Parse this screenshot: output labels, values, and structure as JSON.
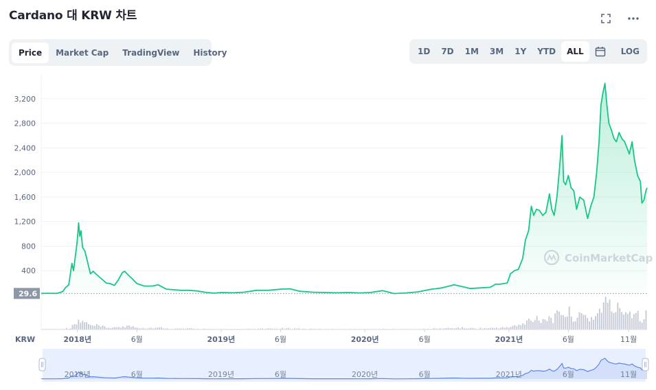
{
  "header": {
    "title": "Cardano 대 KRW 차트"
  },
  "tabs": [
    {
      "label": "Price",
      "active": true
    },
    {
      "label": "Market Cap",
      "active": false
    },
    {
      "label": "TradingView",
      "active": false
    },
    {
      "label": "History",
      "active": false
    }
  ],
  "ranges": [
    {
      "label": "1D",
      "active": false
    },
    {
      "label": "7D",
      "active": false
    },
    {
      "label": "1M",
      "active": false
    },
    {
      "label": "3M",
      "active": false
    },
    {
      "label": "1Y",
      "active": false
    },
    {
      "label": "YTD",
      "active": false
    },
    {
      "label": "ALL",
      "active": true
    }
  ],
  "log_label": "LOG",
  "watermark": "CoinMarketCap",
  "colors": {
    "line": "#16c784",
    "volume": "#c5cad6",
    "navigator": "#5b86e5",
    "navigator_fill": "#e8efff",
    "baseline_label_bg": "#8d97a8"
  },
  "chart_data": {
    "type": "area",
    "currency": "KRW",
    "ylim": [
      0,
      3600
    ],
    "yticks": [
      400,
      800,
      1200,
      1600,
      2000,
      2400,
      2800,
      3200
    ],
    "ytick_labels": [
      "400",
      "800",
      "1,200",
      "1,600",
      "2,000",
      "2,400",
      "2,800",
      "3,200"
    ],
    "baseline_value": 29.6,
    "baseline_label": "29.6",
    "xticks": [
      {
        "date": "2018-01-01",
        "label": "2018년"
      },
      {
        "date": "2018-06-01",
        "label": "6월"
      },
      {
        "date": "2019-01-01",
        "label": "2019년"
      },
      {
        "date": "2019-06-01",
        "label": "6월"
      },
      {
        "date": "2020-01-01",
        "label": "2020년"
      },
      {
        "date": "2020-06-01",
        "label": "6월"
      },
      {
        "date": "2021-01-01",
        "label": "2021년"
      },
      {
        "date": "2021-06-01",
        "label": "6월"
      },
      {
        "date": "2021-11-01",
        "label": "11월"
      }
    ],
    "xrange": [
      "2017-10-01",
      "2021-12-18"
    ],
    "grid": true,
    "series": [
      {
        "points": [
          [
            "2017-10-01",
            30
          ],
          [
            "2017-10-20",
            31
          ],
          [
            "2017-11-10",
            30
          ],
          [
            "2017-11-25",
            60
          ],
          [
            "2017-12-01",
            120
          ],
          [
            "2017-12-10",
            170
          ],
          [
            "2017-12-18",
            520
          ],
          [
            "2017-12-22",
            400
          ],
          [
            "2017-12-26",
            600
          ],
          [
            "2017-12-30",
            800
          ],
          [
            "2018-01-02",
            1000
          ],
          [
            "2018-01-04",
            1180
          ],
          [
            "2018-01-07",
            960
          ],
          [
            "2018-01-10",
            1050
          ],
          [
            "2018-01-14",
            780
          ],
          [
            "2018-01-20",
            720
          ],
          [
            "2018-01-26",
            560
          ],
          [
            "2018-02-03",
            350
          ],
          [
            "2018-02-10",
            390
          ],
          [
            "2018-02-20",
            330
          ],
          [
            "2018-03-01",
            280
          ],
          [
            "2018-03-15",
            200
          ],
          [
            "2018-03-25",
            190
          ],
          [
            "2018-04-05",
            160
          ],
          [
            "2018-04-15",
            250
          ],
          [
            "2018-04-25",
            370
          ],
          [
            "2018-05-01",
            390
          ],
          [
            "2018-05-10",
            330
          ],
          [
            "2018-05-20",
            270
          ],
          [
            "2018-06-01",
            190
          ],
          [
            "2018-06-20",
            150
          ],
          [
            "2018-07-10",
            150
          ],
          [
            "2018-07-25",
            170
          ],
          [
            "2018-08-15",
            100
          ],
          [
            "2018-09-01",
            90
          ],
          [
            "2018-09-20",
            80
          ],
          [
            "2018-10-10",
            80
          ],
          [
            "2018-11-01",
            70
          ],
          [
            "2018-11-25",
            45
          ],
          [
            "2018-12-15",
            35
          ],
          [
            "2019-01-01",
            45
          ],
          [
            "2019-02-01",
            40
          ],
          [
            "2019-03-01",
            50
          ],
          [
            "2019-04-01",
            80
          ],
          [
            "2019-05-01",
            80
          ],
          [
            "2019-06-01",
            100
          ],
          [
            "2019-06-25",
            105
          ],
          [
            "2019-07-20",
            65
          ],
          [
            "2019-08-20",
            50
          ],
          [
            "2019-09-20",
            45
          ],
          [
            "2019-10-20",
            40
          ],
          [
            "2019-11-20",
            45
          ],
          [
            "2019-12-20",
            38
          ],
          [
            "2020-01-15",
            45
          ],
          [
            "2020-02-15",
            75
          ],
          [
            "2020-03-15",
            28
          ],
          [
            "2020-04-15",
            38
          ],
          [
            "2020-05-15",
            55
          ],
          [
            "2020-06-15",
            95
          ],
          [
            "2020-07-15",
            120
          ],
          [
            "2020-08-15",
            170
          ],
          [
            "2020-09-05",
            140
          ],
          [
            "2020-09-25",
            110
          ],
          [
            "2020-10-20",
            120
          ],
          [
            "2020-11-15",
            130
          ],
          [
            "2020-11-28",
            180
          ],
          [
            "2020-12-10",
            180
          ],
          [
            "2020-12-28",
            200
          ],
          [
            "2021-01-05",
            350
          ],
          [
            "2021-01-15",
            400
          ],
          [
            "2021-01-25",
            420
          ],
          [
            "2021-02-05",
            600
          ],
          [
            "2021-02-12",
            900
          ],
          [
            "2021-02-20",
            1050
          ],
          [
            "2021-02-27",
            1450
          ],
          [
            "2021-03-05",
            1300
          ],
          [
            "2021-03-12",
            1400
          ],
          [
            "2021-03-20",
            1380
          ],
          [
            "2021-03-28",
            1300
          ],
          [
            "2021-04-05",
            1350
          ],
          [
            "2021-04-14",
            1650
          ],
          [
            "2021-04-20",
            1400
          ],
          [
            "2021-04-26",
            1300
          ],
          [
            "2021-05-03",
            1600
          ],
          [
            "2021-05-10",
            2100
          ],
          [
            "2021-05-16",
            2600
          ],
          [
            "2021-05-20",
            1850
          ],
          [
            "2021-05-25",
            1800
          ],
          [
            "2021-06-01",
            1950
          ],
          [
            "2021-06-08",
            1750
          ],
          [
            "2021-06-15",
            1700
          ],
          [
            "2021-06-22",
            1400
          ],
          [
            "2021-06-30",
            1600
          ],
          [
            "2021-07-10",
            1550
          ],
          [
            "2021-07-20",
            1250
          ],
          [
            "2021-07-28",
            1450
          ],
          [
            "2021-08-05",
            1600
          ],
          [
            "2021-08-12",
            2000
          ],
          [
            "2021-08-18",
            2500
          ],
          [
            "2021-08-23",
            3100
          ],
          [
            "2021-08-28",
            3300
          ],
          [
            "2021-09-02",
            3450
          ],
          [
            "2021-09-07",
            3100
          ],
          [
            "2021-09-12",
            2800
          ],
          [
            "2021-09-18",
            2700
          ],
          [
            "2021-09-25",
            2550
          ],
          [
            "2021-10-01",
            2500
          ],
          [
            "2021-10-08",
            2650
          ],
          [
            "2021-10-15",
            2550
          ],
          [
            "2021-10-22",
            2500
          ],
          [
            "2021-10-28",
            2400
          ],
          [
            "2021-11-03",
            2300
          ],
          [
            "2021-11-10",
            2500
          ],
          [
            "2021-11-16",
            2200
          ],
          [
            "2021-11-24",
            1950
          ],
          [
            "2021-12-01",
            1850
          ],
          [
            "2021-12-05",
            1500
          ],
          [
            "2021-12-10",
            1550
          ],
          [
            "2021-12-15",
            1700
          ],
          [
            "2021-12-18",
            1750
          ]
        ]
      }
    ]
  }
}
